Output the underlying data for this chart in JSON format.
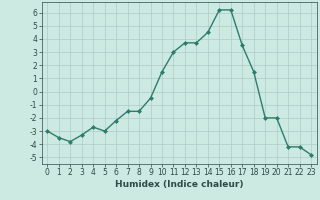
{
  "x": [
    0,
    1,
    2,
    3,
    4,
    5,
    6,
    7,
    8,
    9,
    10,
    11,
    12,
    13,
    14,
    15,
    16,
    17,
    18,
    19,
    20,
    21,
    22,
    23
  ],
  "y": [
    -3,
    -3.5,
    -3.8,
    -3.3,
    -2.7,
    -3.0,
    -2.2,
    -1.5,
    -1.5,
    -0.5,
    1.5,
    3.0,
    3.7,
    3.7,
    4.5,
    6.2,
    6.2,
    3.5,
    1.5,
    -2.0,
    -2.0,
    -4.2,
    -4.2,
    -4.8
  ],
  "line_color": "#2d7d6e",
  "marker": "D",
  "marker_size": 2.0,
  "linewidth": 1.0,
  "xlabel": "Humidex (Indice chaleur)",
  "xlim": [
    -0.5,
    23.5
  ],
  "ylim": [
    -5.5,
    6.8
  ],
  "yticks": [
    -5,
    -4,
    -3,
    -2,
    -1,
    0,
    1,
    2,
    3,
    4,
    5,
    6
  ],
  "xticks": [
    0,
    1,
    2,
    3,
    4,
    5,
    6,
    7,
    8,
    9,
    10,
    11,
    12,
    13,
    14,
    15,
    16,
    17,
    18,
    19,
    20,
    21,
    22,
    23
  ],
  "background_color": "#cce9e2",
  "grid_color": "#b0ccc8",
  "tick_fontsize": 5.5,
  "xlabel_fontsize": 6.5
}
